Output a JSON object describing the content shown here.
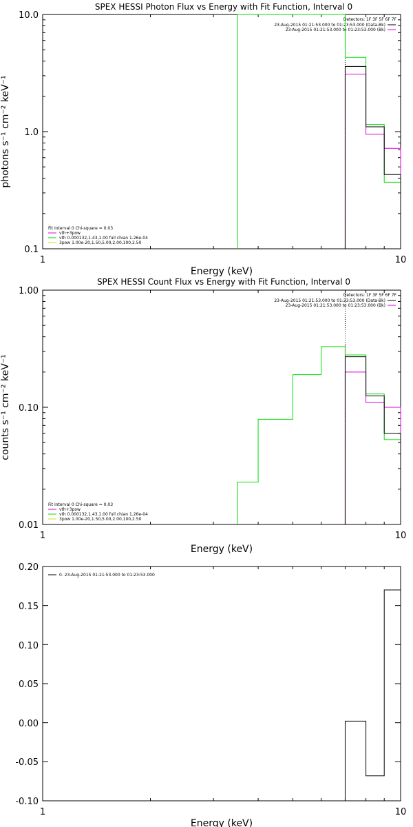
{
  "colors": {
    "black": "#000000",
    "green": "#00dd00",
    "magenta": "#dd00dd",
    "background": "#ffffff"
  },
  "chart_data": [
    {
      "type": "line",
      "title": "SPEX HESSI Photon Flux vs Energy with Fit Function, Interval 0",
      "xlabel": "Energy (keV)",
      "ylabel": "photons s⁻¹ cm⁻² keV⁻¹",
      "xscale": "log",
      "yscale": "log",
      "xlim": [
        1,
        10
      ],
      "ylim": [
        0.1,
        10
      ],
      "xticks": [
        "1",
        "10"
      ],
      "yticks": [
        "0.1",
        "1.0",
        "10.0"
      ],
      "detectors": "Detectors: 1F 3F 5F 6F 7F",
      "legend_top": [
        "23-Aug-2015 01:21:53.000 to 01:23:53.000 (Data-Bk)",
        "23-Aug-2015 01:21:53.000 to 01:23:53.000 (Bk)"
      ],
      "legend_bottom": [
        "Fit Interval  0   Chi-square = 0.03",
        "vth+3pow",
        "vth 0.000132,1.43,1.00  full chian 1.26e-04",
        "3pow 1.00e-20,1.50,5.00,2.00,100,2.50"
      ],
      "vline_x": 7.0,
      "series": [
        {
          "name": "vth 0.000132,1.43,1.00  full chian 1.26e-04",
          "color": "green",
          "x": [
            3.5,
            7,
            8,
            9,
            10
          ],
          "y": [
            10,
            4.3,
            1.15,
            0.37,
            0.37
          ]
        },
        {
          "name": "vth+3pow",
          "color": "magenta",
          "x": [
            7,
            8,
            9,
            10
          ],
          "y": [
            3.1,
            0.95,
            0.72,
            0.72
          ]
        },
        {
          "name": "Data-Bk",
          "color": "black",
          "x": [
            7,
            8,
            9,
            10
          ],
          "y": [
            3.6,
            1.1,
            0.43,
            0.43
          ]
        }
      ]
    },
    {
      "type": "line",
      "title": "SPEX HESSI Count Flux vs Energy with Fit Function, Interval 0",
      "xlabel": "Energy (keV)",
      "ylabel": "counts s⁻¹ cm⁻² keV⁻¹",
      "xscale": "log",
      "yscale": "log",
      "xlim": [
        1,
        10
      ],
      "ylim": [
        0.01,
        1
      ],
      "xticks": [
        "1",
        "10"
      ],
      "yticks": [
        "0.01",
        "0.10",
        "1.00"
      ],
      "detectors": "Detectors: 1F 3F 5F 6F 7F",
      "legend_top": [
        "23-Aug-2015 01:21:53.000 to 01:23:53.000 (Data-Bk)",
        "23-Aug-2015 01:21:53.000 to 01:23:53.000 (Bk)"
      ],
      "legend_bottom": [
        "Fit Interval  0   Chi-square = 0.03",
        "vth+3pow",
        "vth 0.000132,1.43,1.00  full chian 1.26e-04",
        "3pow 1.00e-20,1.50,5.00,2.00,100,2.50"
      ],
      "vline_x": 7.0,
      "series": [
        {
          "name": "vth 0.000132,1.43,1.00  full chian 1.26e-04",
          "color": "green",
          "x": [
            3.5,
            4,
            5,
            6,
            7,
            8,
            9,
            10
          ],
          "y": [
            0.023,
            0.079,
            0.19,
            0.33,
            0.28,
            0.13,
            0.053,
            0.053
          ]
        },
        {
          "name": "vth+3pow",
          "color": "magenta",
          "x": [
            7,
            8,
            9,
            10
          ],
          "y": [
            0.2,
            0.11,
            0.1,
            0.1
          ]
        },
        {
          "name": "Data-Bk",
          "color": "black",
          "x": [
            7,
            8,
            9,
            10
          ],
          "y": [
            0.27,
            0.125,
            0.06,
            0.06
          ]
        }
      ]
    },
    {
      "type": "line",
      "title": "",
      "xlabel": "Energy (keV)",
      "ylabel": "",
      "xscale": "log",
      "yscale": "linear",
      "xlim": [
        1,
        10
      ],
      "ylim": [
        -0.1,
        0.2
      ],
      "xticks": [
        "1",
        "10"
      ],
      "yticks": [
        "-0.10",
        "-0.05",
        "0.00",
        "0.05",
        "0.10",
        "0.15",
        "0.20"
      ],
      "legend": [
        "0. 23-Aug-2015 01:21:53.000 to 01:23:53.000"
      ],
      "series": [
        {
          "name": "0. 23-Aug-2015 01:21:53.000 to 01:23:53.000",
          "color": "black",
          "x": [
            7,
            8,
            9,
            10
          ],
          "y": [
            0.002,
            -0.068,
            0.17,
            0.17
          ]
        }
      ]
    }
  ]
}
